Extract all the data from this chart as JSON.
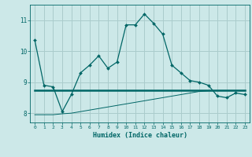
{
  "title": "",
  "xlabel": "Humidex (Indice chaleur)",
  "background_color": "#cce8e8",
  "grid_color": "#aacccc",
  "line_color": "#006666",
  "xlim": [
    -0.5,
    23.5
  ],
  "ylim": [
    7.7,
    11.5
  ],
  "yticks": [
    8,
    9,
    10,
    11
  ],
  "xticks": [
    0,
    1,
    2,
    3,
    4,
    5,
    6,
    7,
    8,
    9,
    10,
    11,
    12,
    13,
    14,
    15,
    16,
    17,
    18,
    19,
    20,
    21,
    22,
    23
  ],
  "series1_x": [
    0,
    1,
    2,
    3,
    4,
    5,
    6,
    7,
    8,
    9,
    10,
    11,
    12,
    13,
    14,
    15,
    16,
    17,
    18,
    19,
    20,
    21,
    22,
    23
  ],
  "series1_y": [
    10.35,
    8.9,
    8.85,
    8.05,
    8.6,
    9.3,
    9.55,
    9.85,
    9.45,
    9.65,
    10.85,
    10.85,
    11.2,
    10.9,
    10.55,
    9.55,
    9.3,
    9.05,
    9.0,
    8.9,
    8.55,
    8.5,
    8.65,
    8.6
  ],
  "series2_x": [
    0,
    1,
    2,
    3,
    4,
    5,
    6,
    7,
    8,
    9,
    10,
    11,
    12,
    13,
    14,
    15,
    16,
    17,
    18,
    19,
    20,
    21,
    22,
    23
  ],
  "series2_y": [
    8.75,
    8.75,
    8.75,
    8.75,
    8.75,
    8.75,
    8.75,
    8.75,
    8.75,
    8.75,
    8.75,
    8.75,
    8.75,
    8.75,
    8.75,
    8.75,
    8.75,
    8.75,
    8.75,
    8.75,
    8.75,
    8.75,
    8.75,
    8.75
  ],
  "series3_x": [
    0,
    1,
    2,
    3,
    4,
    5,
    6,
    7,
    8,
    9,
    10,
    11,
    12,
    13,
    14,
    15,
    16,
    17,
    18,
    19,
    20,
    21,
    22,
    23
  ],
  "series3_y": [
    7.95,
    7.95,
    7.95,
    7.98,
    8.0,
    8.05,
    8.1,
    8.15,
    8.2,
    8.25,
    8.3,
    8.35,
    8.4,
    8.45,
    8.5,
    8.55,
    8.6,
    8.65,
    8.7,
    8.72,
    8.73,
    8.73,
    8.73,
    8.73
  ]
}
